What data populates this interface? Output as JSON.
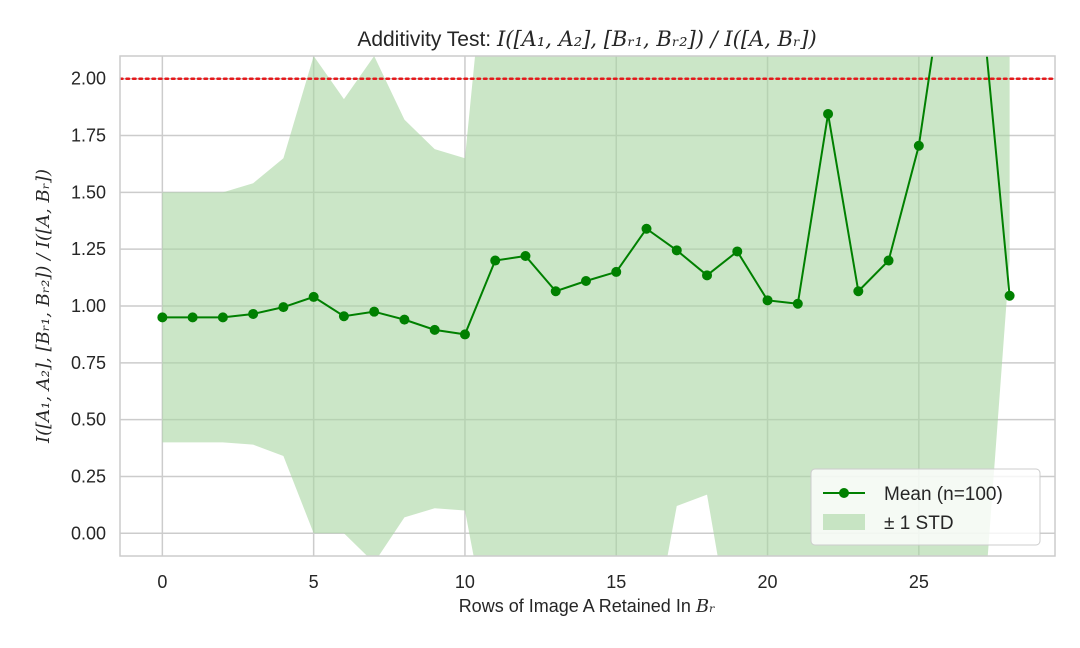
{
  "chart_data": {
    "type": "line",
    "title_prefix": "Additivity Test: ",
    "title_math": "I([A₁, A₂], [Bᵣ₁, Bᵣ₂]) / I([A, Bᵣ])",
    "xlabel_prefix": "Rows of Image A Retained In ",
    "xlabel_math": "Bᵣ",
    "ylabel": "I([A₁, A₂], [Bᵣ₁, Bᵣ₂]) / I([A, Bᵣ])",
    "xlim": [
      -1.4,
      29.5
    ],
    "ylim": [
      -0.1,
      2.1
    ],
    "xticks": [
      0,
      5,
      10,
      15,
      20,
      25
    ],
    "yticks": [
      "0.00",
      "0.25",
      "0.50",
      "0.75",
      "1.00",
      "1.25",
      "1.50",
      "1.75",
      "2.00"
    ],
    "grid": true,
    "reference_line": {
      "y": 2.0,
      "color": "#e41a1c",
      "style": "dotted"
    },
    "x": [
      0,
      1,
      2,
      3,
      4,
      5,
      6,
      7,
      8,
      9,
      10,
      11,
      12,
      13,
      14,
      15,
      16,
      17,
      18,
      19,
      20,
      21,
      22,
      23,
      24,
      25,
      26,
      27,
      28
    ],
    "series": [
      {
        "name": "Mean (n=100)",
        "color": "#008000",
        "values": [
          0.95,
          0.95,
          0.95,
          0.965,
          0.995,
          1.04,
          0.955,
          0.975,
          0.94,
          0.895,
          0.875,
          1.2,
          1.22,
          1.065,
          1.11,
          1.15,
          1.34,
          1.245,
          1.135,
          1.24,
          1.025,
          1.01,
          1.845,
          1.065,
          1.2,
          1.705,
          2.6,
          2.45,
          1.045
        ]
      },
      {
        "name": "± 1 STD",
        "color": "#a8d5a2",
        "upper": [
          1.5,
          1.5,
          1.5,
          1.54,
          1.65,
          2.1,
          1.91,
          2.1,
          1.82,
          1.69,
          1.65,
          3.0,
          3.0,
          3.0,
          3.0,
          3.0,
          3.0,
          3.0,
          3.0,
          2.75,
          2.1,
          2.6,
          3.0,
          3.0,
          3.0,
          3.0,
          3.0,
          3.0,
          3.0
        ],
        "lower": [
          0.4,
          0.4,
          0.4,
          0.39,
          0.34,
          0.0,
          0.0,
          -0.13,
          0.07,
          0.11,
          0.1,
          -0.6,
          -0.6,
          -0.6,
          -0.6,
          -0.3,
          -0.6,
          0.12,
          0.17,
          -0.6,
          -0.6,
          -0.6,
          -0.6,
          -0.6,
          -0.6,
          -0.6,
          -0.6,
          -0.6,
          1.2
        ]
      }
    ],
    "legend": {
      "position": "lower right",
      "entries": [
        "Mean (n=100)",
        "± 1 STD"
      ]
    }
  }
}
